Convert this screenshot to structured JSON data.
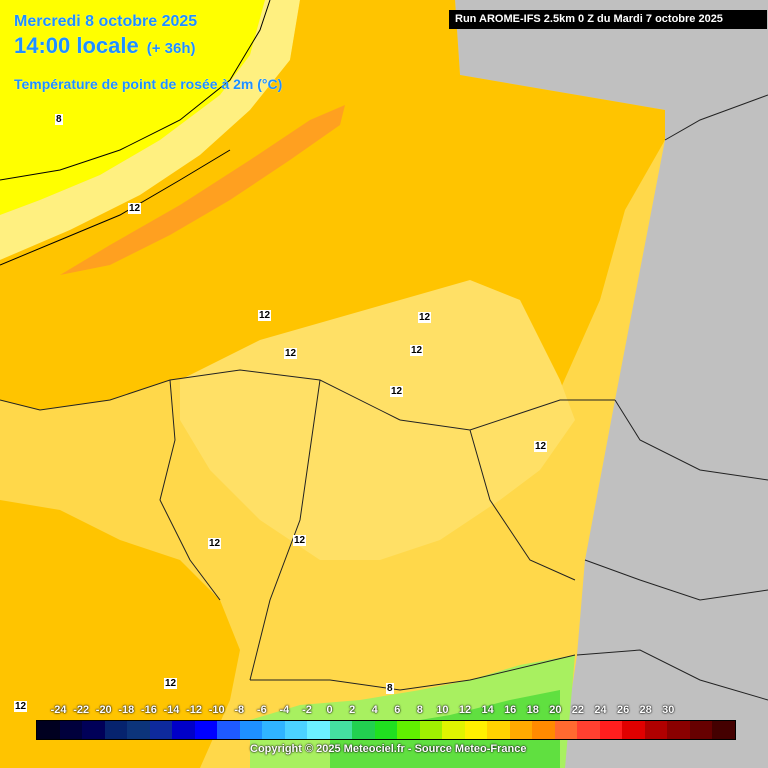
{
  "header": {
    "date": "Mercredi 8 octobre 2025",
    "time": "14:00 locale",
    "lead": "(+ 36h)",
    "parameter": "Température de point de rosée à 2m (°C)"
  },
  "run_info": "Run AROME-IFS 2.5km 0 Z du Mardi 7 octobre 2025",
  "legend": {
    "ticks": [
      "-24",
      "-22",
      "-20",
      "-18",
      "-16",
      "-14",
      "-12",
      "-10",
      "-8",
      "-6",
      "-4",
      "-2",
      "0",
      "2",
      "4",
      "6",
      "8",
      "10",
      "12",
      "14",
      "16",
      "18",
      "20",
      "22",
      "24",
      "26",
      "28",
      "30"
    ],
    "colors": [
      "#000020",
      "#00003c",
      "#000058",
      "#06236e",
      "#0c347a",
      "#0e2a9c",
      "#0000c8",
      "#0000ff",
      "#1e5aff",
      "#1e90ff",
      "#30b4ff",
      "#4cd2ff",
      "#6cf0ff",
      "#44e0a0",
      "#22d050",
      "#20e020",
      "#60f000",
      "#a0f000",
      "#e0f400",
      "#fff000",
      "#ffd200",
      "#ffaa00",
      "#ff8a00",
      "#ff6a30",
      "#ff4030",
      "#ff1e1e",
      "#e00000",
      "#b00000",
      "#8a0000",
      "#660000",
      "#440000"
    ]
  },
  "contour_labels": [
    "8",
    "12",
    "12",
    "12",
    "12",
    "12",
    "12",
    "12",
    "12",
    "12",
    "12",
    "12",
    "8"
  ],
  "copyright": "Copyright © 2025 Meteociel.fr - Source Meteo-France"
}
